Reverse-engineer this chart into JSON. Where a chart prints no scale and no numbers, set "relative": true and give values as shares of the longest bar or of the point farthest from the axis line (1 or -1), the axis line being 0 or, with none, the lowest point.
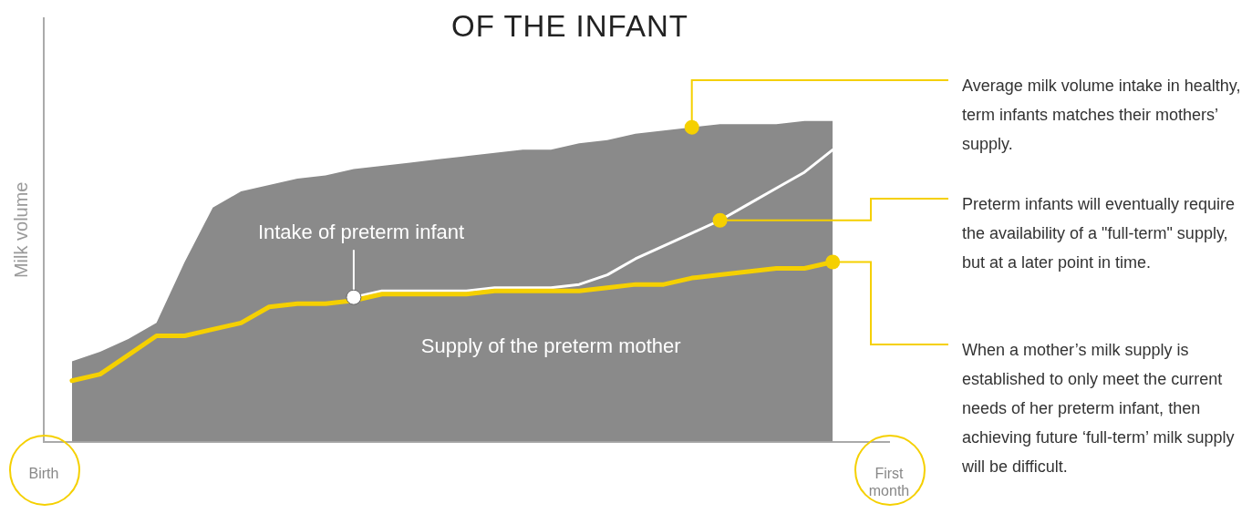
{
  "chart_data": {
    "type": "line",
    "title": "OF THE INFANT",
    "ylabel": "Milk volume",
    "relative": true,
    "legend": false,
    "grid": false,
    "categories": [
      "Birth",
      null,
      null,
      null,
      null,
      null,
      null,
      null,
      null,
      null,
      null,
      null,
      null,
      null,
      null,
      null,
      null,
      null,
      null,
      null,
      null,
      null,
      null,
      null,
      null,
      null,
      null,
      null,
      null,
      null,
      "First month"
    ],
    "series": [
      {
        "type": "area",
        "color": "#8a8a8a",
        "values": [
          null,
          0.25,
          0.28,
          0.32,
          0.37,
          0.56,
          0.73,
          0.78,
          0.8,
          0.82,
          0.83,
          0.85,
          0.86,
          0.87,
          0.88,
          0.89,
          0.9,
          0.91,
          0.91,
          0.93,
          0.94,
          0.96,
          0.97,
          0.98,
          0.99,
          0.99,
          0.99,
          1.0,
          1.0,
          null,
          null
        ]
      },
      {
        "name": "Intake of preterm infant",
        "color": "#ffffff",
        "values": [
          null,
          null,
          null,
          null,
          null,
          null,
          null,
          null,
          null,
          null,
          null,
          0.45,
          0.47,
          0.47,
          0.47,
          0.47,
          0.48,
          0.48,
          0.48,
          0.49,
          0.52,
          0.57,
          0.61,
          0.65,
          0.69,
          0.74,
          0.79,
          0.84,
          0.91,
          null,
          null
        ]
      },
      {
        "name": "Supply of the preterm mother",
        "color": "#f5d000",
        "values": [
          null,
          0.19,
          0.21,
          0.27,
          0.33,
          0.33,
          0.35,
          0.37,
          0.42,
          0.43,
          0.43,
          0.44,
          0.46,
          0.46,
          0.46,
          0.46,
          0.47,
          0.47,
          0.47,
          0.47,
          0.48,
          0.49,
          0.49,
          0.51,
          0.52,
          0.53,
          0.54,
          0.54,
          0.56,
          null,
          null
        ]
      }
    ],
    "annotations": [
      "Average milk volume intake in healthy, term infants matches their mothers’ supply.",
      "Preterm infants will eventually require the availability of a \"full-term\" supply, but at a later point in time.",
      "When a mother’s milk supply is established to only meet the current needs of her preterm infant, then achieving future ‘full-term’ milk supply will be difficult."
    ]
  }
}
